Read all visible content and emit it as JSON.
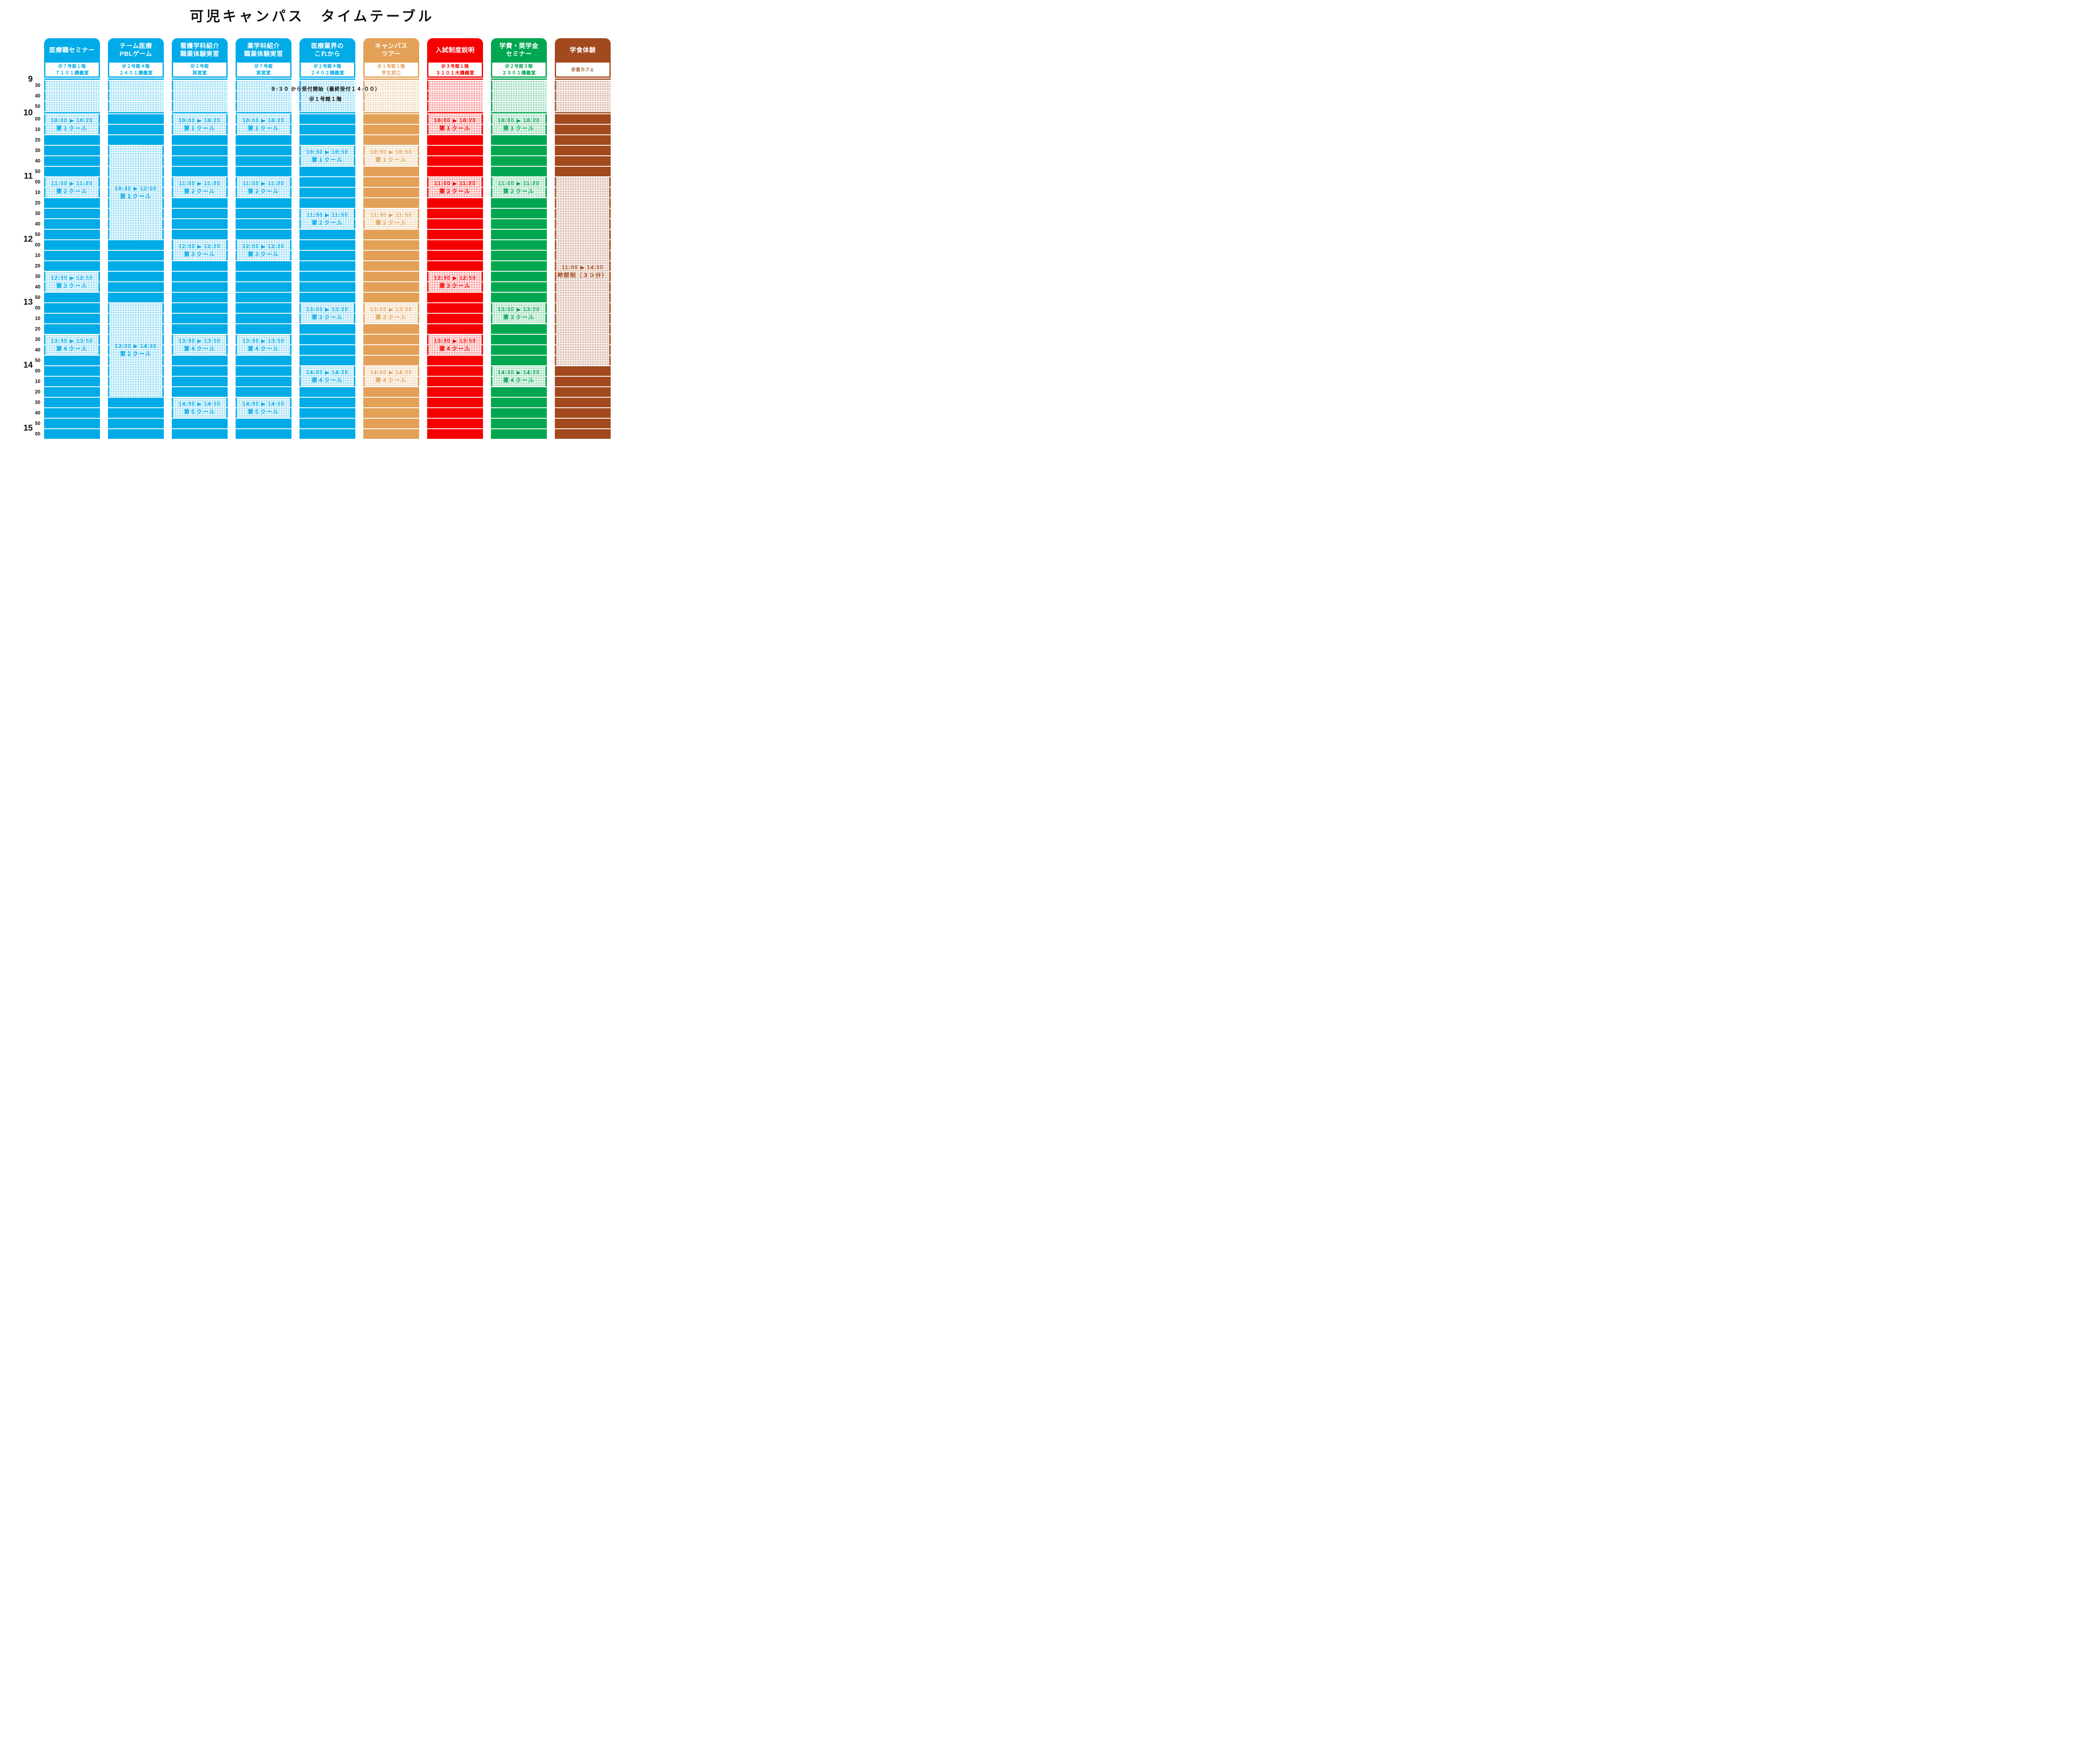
{
  "title": "可児キャンパス　タイムテーブル",
  "note": {
    "line1": "９:３０ から受付開始（最終受付１４:００）",
    "line2": "＠１号館１階"
  },
  "time_axis": {
    "start": "9:30",
    "end": "15:00",
    "step_minutes": 10,
    "hour_labels": [
      "9",
      "10",
      "11",
      "12",
      "13",
      "14",
      "15"
    ],
    "minute_labels": [
      "30",
      "40",
      "50",
      "00",
      "10",
      "20",
      "30",
      "40",
      "50",
      "00",
      "10",
      "20",
      "30",
      "40",
      "50",
      "00",
      "10",
      "20",
      "30",
      "40",
      "50",
      "00",
      "10",
      "20",
      "30",
      "40",
      "50",
      "00",
      "10",
      "20",
      "30",
      "40",
      "50",
      "00"
    ]
  },
  "columns": [
    {
      "id": "medical-seminar",
      "color": "#00ABE8",
      "title_lines": [
        "医療職セミナー"
      ],
      "location": "＠７号館１階",
      "room": "７１０１講義室",
      "events": [
        {
          "start": "10:00",
          "end": "10:20",
          "time": "10:00 ▶ 10:20",
          "label": "第１クール"
        },
        {
          "start": "11:00",
          "end": "11:20",
          "time": "11:00 ▶ 11:20",
          "label": "第２クール"
        },
        {
          "start": "12:30",
          "end": "12:50",
          "time": "12:30 ▶ 12:50",
          "label": "第３クール"
        },
        {
          "start": "13:30",
          "end": "13:50",
          "time": "13:30 ▶ 13:50",
          "label": "第４クール"
        }
      ]
    },
    {
      "id": "team-pbl-game",
      "color": "#00ABE8",
      "title_lines": [
        "チーム医療",
        "PBLゲーム"
      ],
      "location": "＠２号館４階",
      "room": "２４０１講義室",
      "events": [
        {
          "start": "10:30",
          "end": "12:00",
          "time": "10:30 ▶ 12:00",
          "label": "第１クール"
        },
        {
          "start": "13:00",
          "end": "14:30",
          "time": "13:00 ▶ 14:30",
          "label": "第２クール"
        }
      ]
    },
    {
      "id": "nursing-intro",
      "color": "#00ABE8",
      "title_lines": [
        "看護学科紹介",
        "職業体験実習"
      ],
      "location": "＠２号館",
      "room": "実習室",
      "events": [
        {
          "start": "10:00",
          "end": "10:20",
          "time": "10:00 ▶ 10:20",
          "label": "第１クール"
        },
        {
          "start": "11:00",
          "end": "11:20",
          "time": "11:00 ▶ 11:20",
          "label": "第２クール"
        },
        {
          "start": "12:00",
          "end": "12:20",
          "time": "12:00 ▶ 12:20",
          "label": "第３クール"
        },
        {
          "start": "13:30",
          "end": "13:50",
          "time": "13:30 ▶ 13:50",
          "label": "第４クール"
        },
        {
          "start": "14:30",
          "end": "14:50",
          "time": "14:30 ▶ 14:50",
          "label": "第５クール"
        }
      ]
    },
    {
      "id": "pharmacy-intro",
      "color": "#00ABE8",
      "title_lines": [
        "薬学科紹介",
        "職業体験実習"
      ],
      "location": "＠７号館",
      "room": "実習室",
      "events": [
        {
          "start": "10:00",
          "end": "10:20",
          "time": "10:00 ▶ 10:20",
          "label": "第１クール"
        },
        {
          "start": "11:00",
          "end": "11:20",
          "time": "11:00 ▶ 11:20",
          "label": "第２クール"
        },
        {
          "start": "12:00",
          "end": "12:20",
          "time": "12:00 ▶ 12:20",
          "label": "第３クール"
        },
        {
          "start": "13:30",
          "end": "13:50",
          "time": "13:30 ▶ 13:50",
          "label": "第４クール"
        },
        {
          "start": "14:30",
          "end": "14:50",
          "time": "14:30 ▶ 14:50",
          "label": "第５クール"
        }
      ]
    },
    {
      "id": "medical-industry-future",
      "color": "#00ABE8",
      "title_lines": [
        "医療業界の",
        "これから"
      ],
      "location": "＠２号館４階",
      "room": "２４０２講義室",
      "events": [
        {
          "start": "10:30",
          "end": "10:50",
          "time": "10:30 ▶ 10:50",
          "label": "第１クール"
        },
        {
          "start": "11:30",
          "end": "11:50",
          "time": "11:30 ▶ 11:50",
          "label": "第２クール"
        },
        {
          "start": "13:00",
          "end": "13:20",
          "time": "13:00 ▶ 13:20",
          "label": "第３クール"
        },
        {
          "start": "14:00",
          "end": "14:20",
          "time": "14:00 ▶ 14:20",
          "label": "第４クール"
        }
      ]
    },
    {
      "id": "campus-tour",
      "color": "#E2A157",
      "title_lines": [
        "キャンパス",
        "ツアー"
      ],
      "location": "＠１号館１階",
      "room": "学生窓口",
      "events": [
        {
          "start": "10:30",
          "end": "10:50",
          "time": "10:30 ▶ 10:50",
          "label": "第１クール"
        },
        {
          "start": "11:30",
          "end": "11:50",
          "time": "11:30 ▶ 11:50",
          "label": "第２クール"
        },
        {
          "start": "13:00",
          "end": "13:20",
          "time": "13:00 ▶ 13:20",
          "label": "第３クール"
        },
        {
          "start": "14:00",
          "end": "14:20",
          "time": "14:00 ▶ 14:20",
          "label": "第４クール"
        }
      ]
    },
    {
      "id": "admission-system",
      "color": "#F50000",
      "title_lines": [
        "入試制度説明"
      ],
      "location": "＠３号館１階",
      "room": "３１０１大講義室",
      "events": [
        {
          "start": "10:00",
          "end": "10:20",
          "time": "10:00 ▶ 10:20",
          "label": "第１クール"
        },
        {
          "start": "11:00",
          "end": "11:20",
          "time": "11:00 ▶ 11:20",
          "label": "第２クール"
        },
        {
          "start": "12:30",
          "end": "12:50",
          "time": "12:30 ▶ 12:50",
          "label": "第３クール"
        },
        {
          "start": "13:30",
          "end": "13:50",
          "time": "13:30 ▶ 13:50",
          "label": "第４クール"
        }
      ]
    },
    {
      "id": "tuition-scholarship",
      "color": "#00A650",
      "title_lines": [
        "学費・奨学金",
        "セミナー"
      ],
      "location": "＠２号館３階",
      "room": "２３０１講義室",
      "events": [
        {
          "start": "10:00",
          "end": "10:20",
          "time": "10:00 ▶ 10:20",
          "label": "第１クール"
        },
        {
          "start": "11:00",
          "end": "11:20",
          "time": "11:00 ▶ 11:20",
          "label": "第２クール"
        },
        {
          "start": "13:00",
          "end": "13:20",
          "time": "13:00 ▶ 13:20",
          "label": "第３クール"
        },
        {
          "start": "14:00",
          "end": "14:20",
          "time": "14:00 ▶ 14:20",
          "label": "第４クール"
        }
      ]
    },
    {
      "id": "cafeteria-experience",
      "color": "#A24A1E",
      "title_lines": [
        "学食体験"
      ],
      "location": "＠音カフェ",
      "room": "",
      "events": [
        {
          "start": "11:00",
          "end": "14:00",
          "time": "11:00 ▶ 14:00",
          "label": "時間制（３０分）"
        }
      ]
    }
  ]
}
